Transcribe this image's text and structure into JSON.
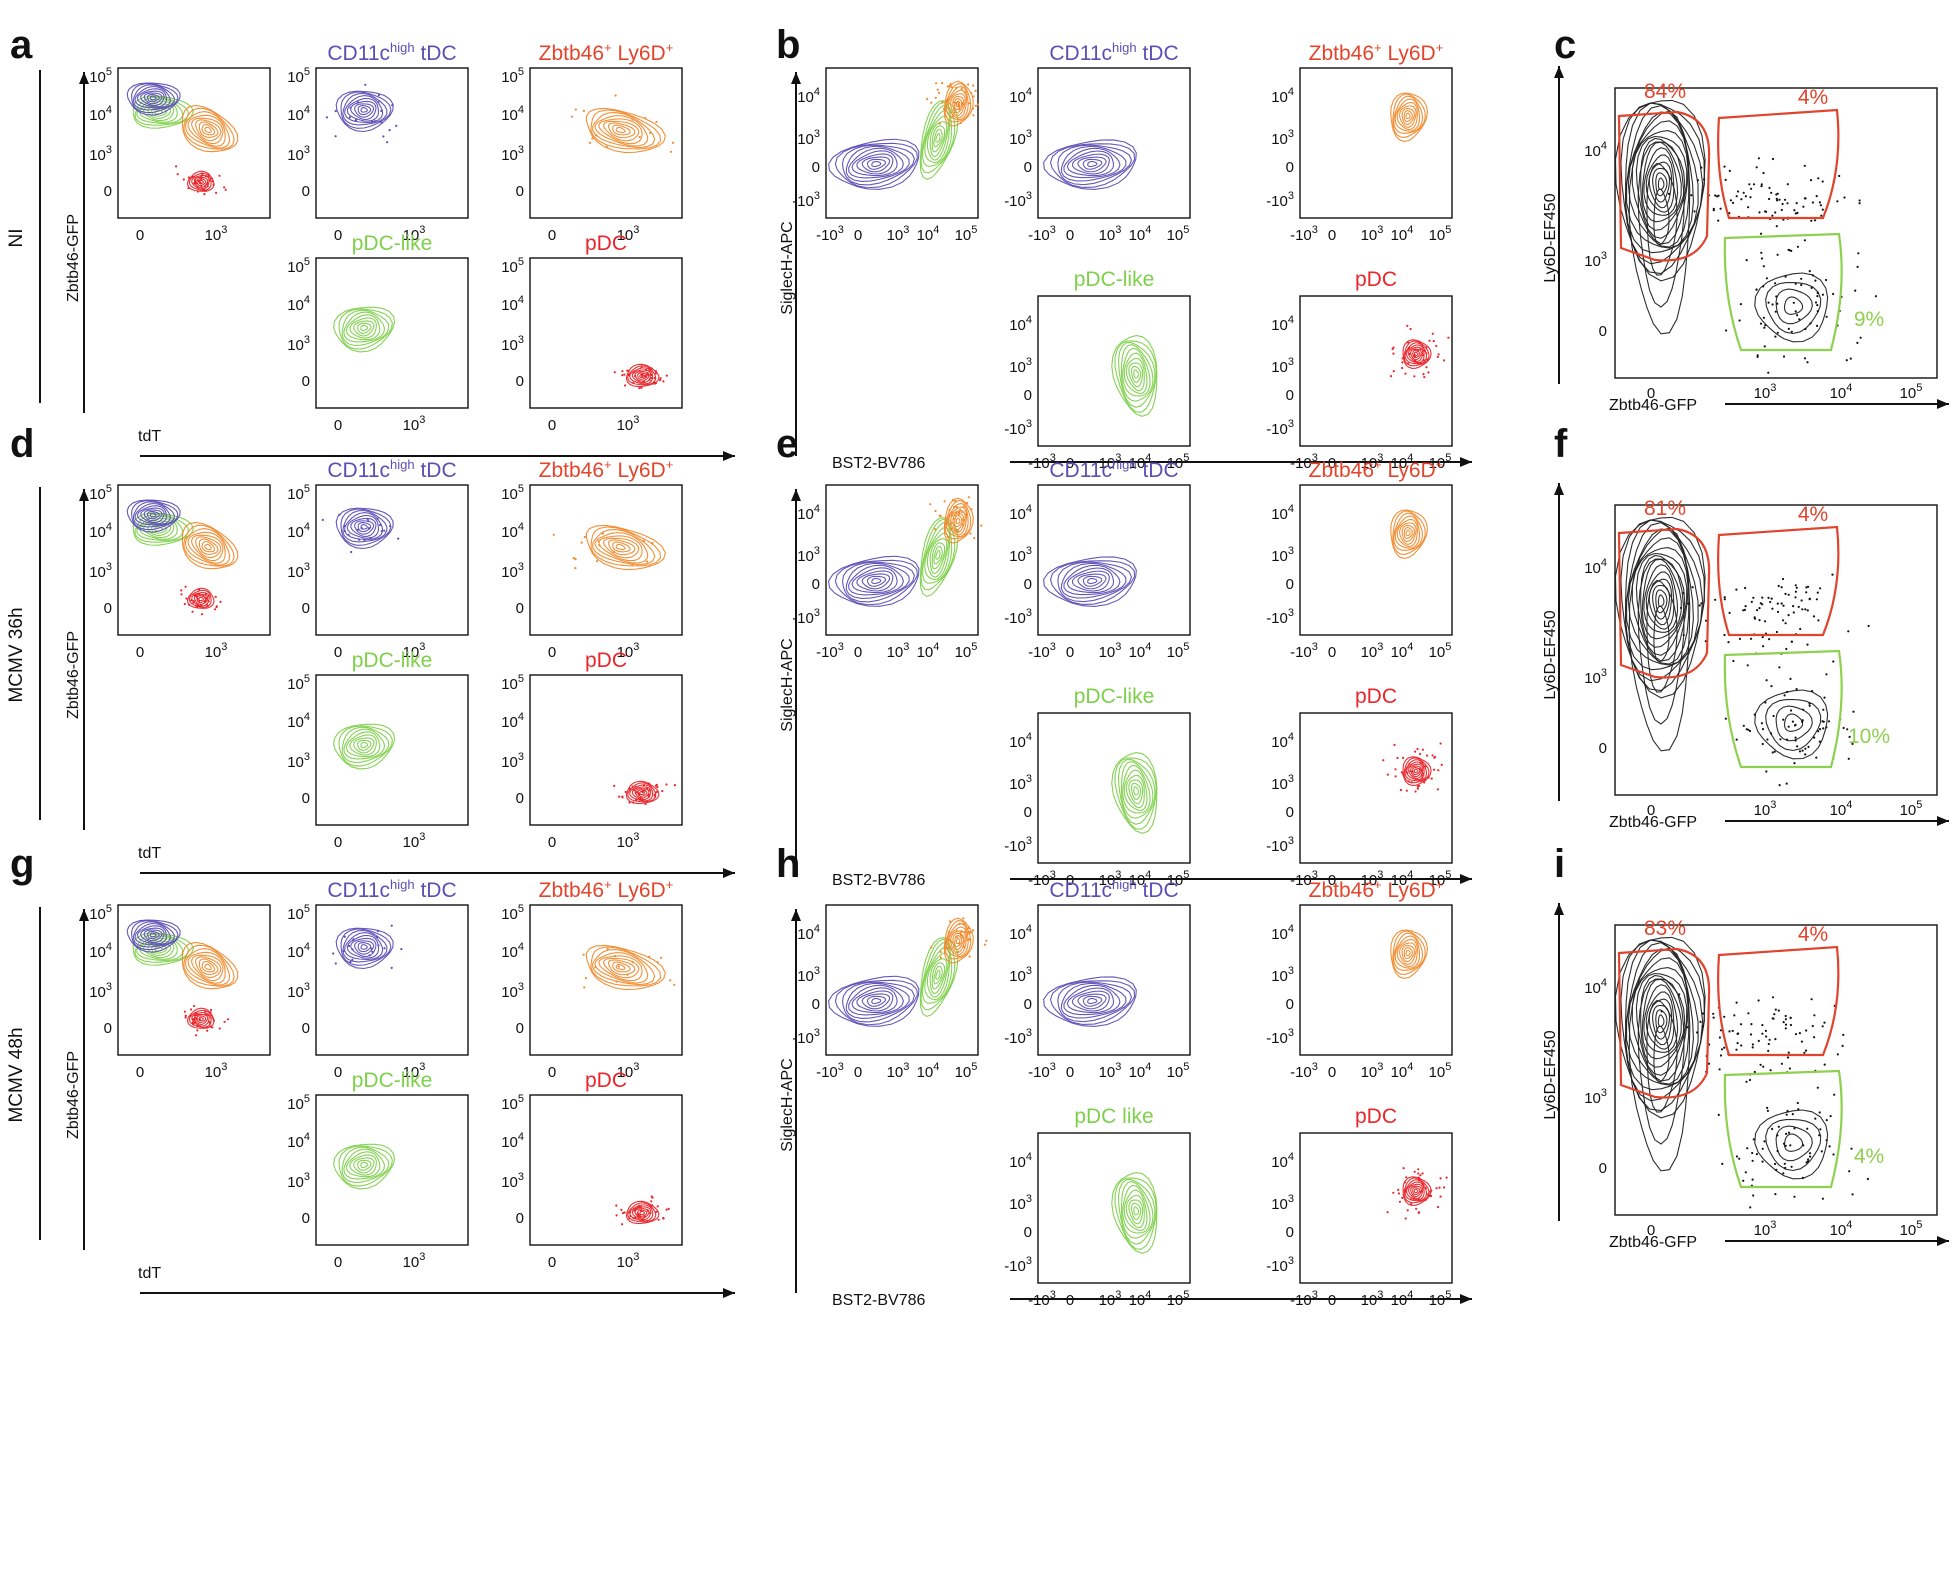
{
  "figure": {
    "panel_letters": [
      "a",
      "b",
      "c",
      "d",
      "e",
      "f",
      "g",
      "h",
      "i"
    ],
    "rows": [
      {
        "condition": "NI",
        "letters": [
          "a",
          "b",
          "c"
        ],
        "c_gates": [
          "84%",
          "4%",
          "9%"
        ],
        "b_pdc_like_title": "pDC-like"
      },
      {
        "condition": "MCMV 36h",
        "letters": [
          "d",
          "e",
          "f"
        ],
        "c_gates": [
          "81%",
          "4%",
          "10%"
        ],
        "b_pdc_like_title": "pDC-like"
      },
      {
        "condition": "MCMV 48h",
        "letters": [
          "g",
          "h",
          "i"
        ],
        "c_gates": [
          "83%",
          "4%",
          "4%"
        ],
        "b_pdc_like_title": "pDC like"
      }
    ],
    "titles": {
      "tdc_main": "CD11c",
      "tdc_sup": "high",
      "tdc_tail": " tDC",
      "ly6d": "Zbtb46",
      "ly6d_sup1": "+",
      "ly6d_mid": " Ly6D",
      "ly6d_sup2": "+",
      "pdc_like": "pDC-like",
      "pdc": "pDC"
    },
    "axes": {
      "a_x": "tdT",
      "a_y": "Zbtb46-GFP",
      "b_x": "BST2-BV786",
      "b_y": "SiglecH-APC",
      "c_x": "Zbtb46-GFP",
      "c_y": "Ly6D-EF450"
    },
    "ticks": {
      "a_y": [
        "10^5",
        "10^4",
        "10^3",
        "0"
      ],
      "a_x": [
        "0",
        "10^3"
      ],
      "b_y": [
        "10^4",
        "10^3",
        "0",
        "-10^3"
      ],
      "b_x": [
        "-10^3",
        "0",
        "10^3",
        "10^4",
        "10^5"
      ],
      "c_y": [
        "10^4",
        "10^3",
        "0"
      ],
      "c_x": [
        "0",
        "10^3",
        "10^4",
        "10^5"
      ]
    },
    "colors": {
      "tdc": "#5b4fb5",
      "ly6d": "#f08a2c",
      "pdc_like": "#7ed04b",
      "pdc": "#e8262b",
      "gate_red": "#e0442c",
      "gate_green": "#8ed04f",
      "contour": "#222222"
    }
  }
}
